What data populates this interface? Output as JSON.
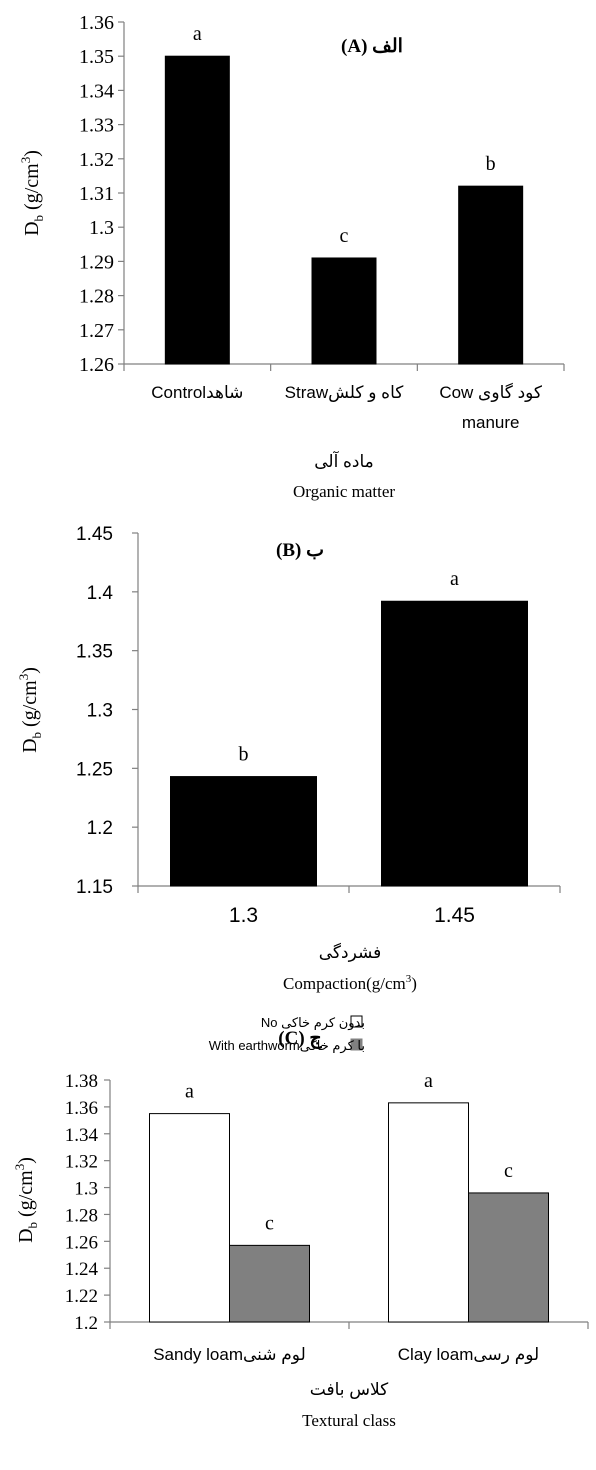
{
  "chart_data": [
    {
      "type": "bar",
      "title": "الف (A)",
      "ylabel": "Db (g/cm3)",
      "ylabel_main": "D",
      "ylabel_sub": "b",
      "ylabel_unit": " (g/cm",
      "ylabel_sup": "3",
      "ylabel_close": ")",
      "xlabel_fa": "ماده آلی",
      "xlabel_en": "Organic matter",
      "ylim": [
        1.26,
        1.36
      ],
      "yticks": [
        "1.26",
        "1.27",
        "1.28",
        "1.29",
        "1.3",
        "1.31",
        "1.32",
        "1.33",
        "1.34",
        "1.35",
        "1.36"
      ],
      "categories": [
        "شاهدControl",
        "کاه و کلشStraw",
        "کود گاوی Cow manure"
      ],
      "category_lines": [
        [
          "شاهدControl"
        ],
        [
          "کاه و کلشStraw"
        ],
        [
          "کود گاوی Cow",
          "manure"
        ]
      ],
      "values": [
        1.35,
        1.291,
        1.312
      ],
      "letters": [
        "a",
        "c",
        "b"
      ],
      "bar_color": "#000000"
    },
    {
      "type": "bar",
      "title": "ب (B)",
      "ylabel": "Db (g/cm3)",
      "ylabel_main": "D",
      "ylabel_sub": "b",
      "ylabel_unit": " (g/cm",
      "ylabel_sup": "3",
      "ylabel_close": ")",
      "xlabel_fa": "فشردگی",
      "xlabel_en": "Compaction(g/cm",
      "xlabel_en_sup": "3",
      "xlabel_en_close": ")",
      "ylim": [
        1.15,
        1.45
      ],
      "yticks": [
        "1.15",
        "1.2",
        "1.25",
        "1.3",
        "1.35",
        "1.4",
        "1.45"
      ],
      "categories": [
        "1.3",
        "1.45"
      ],
      "values": [
        1.243,
        1.392
      ],
      "letters": [
        "b",
        "a"
      ],
      "bar_color": "#000000"
    },
    {
      "type": "bar",
      "title": "ج (C)",
      "ylabel": "Db (g/cm3)",
      "ylabel_main": "D",
      "ylabel_sub": "b",
      "ylabel_unit": " (g/cm",
      "ylabel_sup": "3",
      "ylabel_close": ")",
      "xlabel_fa": "کلاس بافت",
      "xlabel_en": "Textural class",
      "ylim": [
        1.2,
        1.38
      ],
      "yticks": [
        "1.2",
        "1.22",
        "1.24",
        "1.26",
        "1.28",
        "1.3",
        "1.32",
        "1.34",
        "1.36",
        "1.38"
      ],
      "categories": [
        "لوم شنیSandy loam",
        "لوم رسیClay loam"
      ],
      "legend_position": "top",
      "series": [
        {
          "name": "بدون کرم خاکی No",
          "color": "#ffffff",
          "values": [
            1.355,
            1.363
          ],
          "letters": [
            "a",
            "a"
          ]
        },
        {
          "name": "با کرم خاکیWith earthworm",
          "color": "#808080",
          "values": [
            1.257,
            1.296
          ],
          "letters": [
            "c",
            "c"
          ]
        }
      ]
    }
  ]
}
